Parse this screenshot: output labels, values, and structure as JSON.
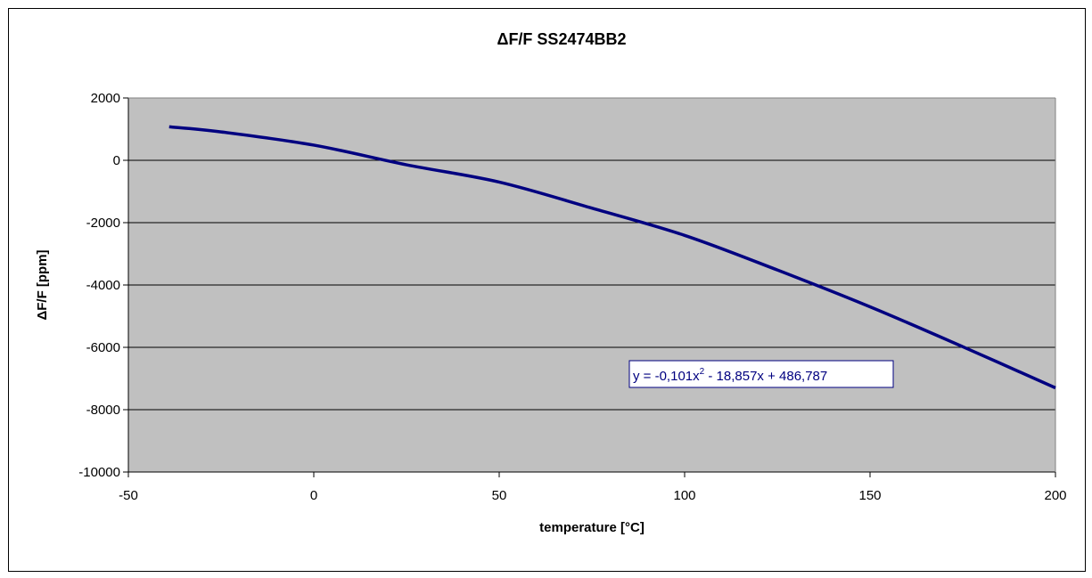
{
  "chart_data": {
    "type": "line",
    "title": "ΔF/F SS2474BB2",
    "xlabel": "temperature [°C]",
    "ylabel": "ΔF/F [ppm]",
    "xlim": [
      -50,
      200
    ],
    "ylim": [
      -10000,
      2000
    ],
    "x_ticks": [
      "-50",
      "0",
      "50",
      "100",
      "150",
      "200"
    ],
    "y_ticks": [
      "2000",
      "0",
      "-2000",
      "-4000",
      "-6000",
      "-8000",
      "-10000"
    ],
    "grid": true,
    "legend": "none",
    "series": [
      {
        "color": "#000080",
        "x": [
          -39,
          -25,
          0,
          25,
          50,
          75,
          100,
          125,
          150,
          175,
          200
        ],
        "y": [
          1075,
          912,
          487,
          -145,
          -699,
          -1535,
          -2408,
          -3519,
          -4700,
          -5980,
          -7300
        ]
      }
    ],
    "annotation": {
      "prefix": "y = -0,101x",
      "sup": "2",
      "suffix": " - 18,857x + 486,787"
    },
    "colors": {
      "plot_bg": "#c0c0c0",
      "line": "#000080",
      "grid": "#000000"
    }
  }
}
